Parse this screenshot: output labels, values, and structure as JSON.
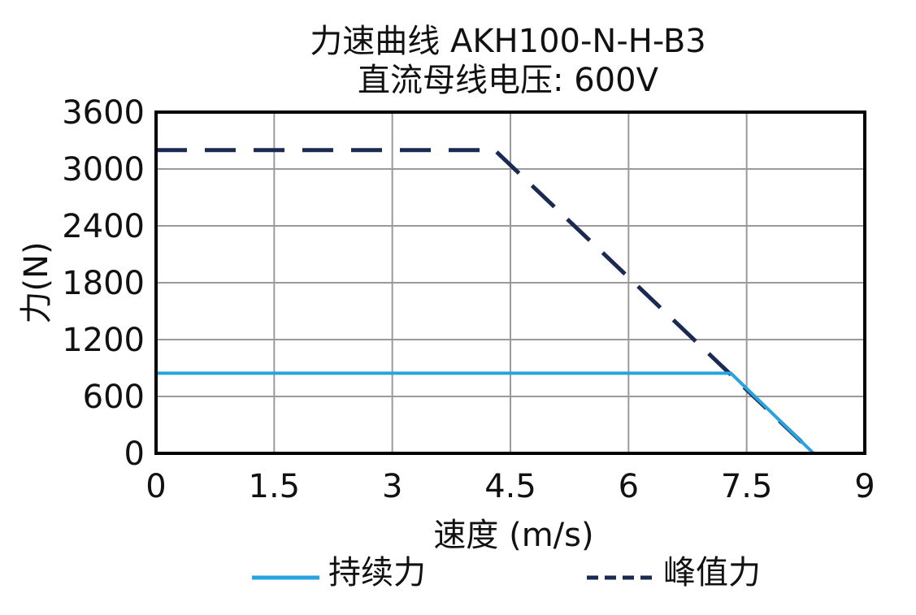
{
  "chart_data": {
    "type": "line",
    "title_lines": [
      "力速曲线 AKH100-N-H-B3",
      "直流母线电压: 600V"
    ],
    "xlabel": "速度 (m/s)",
    "ylabel": "力(N)",
    "xlim": [
      0,
      9
    ],
    "ylim": [
      0,
      3600
    ],
    "xticks": [
      0,
      1.5,
      3,
      4.5,
      6,
      7.5,
      9
    ],
    "xtick_labels": [
      "0",
      "1.5",
      "3",
      "4.5",
      "6",
      "7.5",
      "9"
    ],
    "yticks": [
      0,
      600,
      1200,
      1800,
      2400,
      3000,
      3600
    ],
    "ytick_labels": [
      "0",
      "600",
      "1200",
      "1800",
      "2400",
      "3000",
      "3600"
    ],
    "grid": true,
    "legend_position": "bottom",
    "series": [
      {
        "name": "持续力",
        "style": "solid",
        "color": "#29a3dd",
        "x": [
          0,
          7.3,
          8.35
        ],
        "y": [
          845,
          845,
          0
        ]
      },
      {
        "name": "峰值力",
        "style": "dashed",
        "color": "#1a2a52",
        "x": [
          0,
          4.3,
          8.35
        ],
        "y": [
          3200,
          3200,
          0
        ]
      }
    ]
  }
}
